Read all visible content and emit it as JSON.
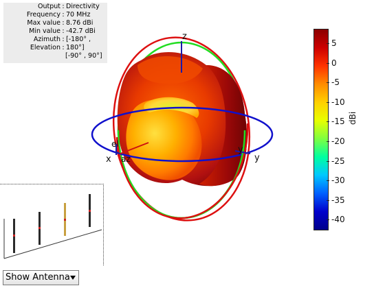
{
  "info_panel": {
    "rows": [
      {
        "key": "Output",
        "value": "Directivity"
      },
      {
        "key": "Frequency",
        "value": "70 MHz"
      },
      {
        "key": "Max value",
        "value": "8.76 dBi"
      },
      {
        "key": "Min value",
        "value": "-42.7 dBi"
      },
      {
        "key": "Azimuth",
        "value": "[-180° ,"
      },
      {
        "key": "Elevation",
        "value": "180°]"
      }
    ],
    "continuation": "[-90° , 90°]"
  },
  "axes": {
    "z": "z",
    "x": "x",
    "y": "y",
    "el": "el",
    "az": "az"
  },
  "colorbar": {
    "label": "dBi",
    "ticks": [
      "5",
      "0",
      "-5",
      "-10",
      "-15",
      "-20",
      "-25",
      "-30",
      "-35",
      "-40"
    ],
    "colors": [
      "#8b0000",
      "#cc0000",
      "#ff3300",
      "#ff8c00",
      "#ffd000",
      "#e8ff00",
      "#7fff40",
      "#00ffa0",
      "#00c8ff",
      "#0060ff",
      "#0000cc",
      "#00008b"
    ]
  },
  "pattern": {
    "colors": {
      "outer": "#8b0a0a",
      "mid": "#e83000",
      "inner": "#ffb000",
      "hot": "#ffe040"
    }
  },
  "antenna_dropdown": {
    "label": "Show Antenna"
  }
}
